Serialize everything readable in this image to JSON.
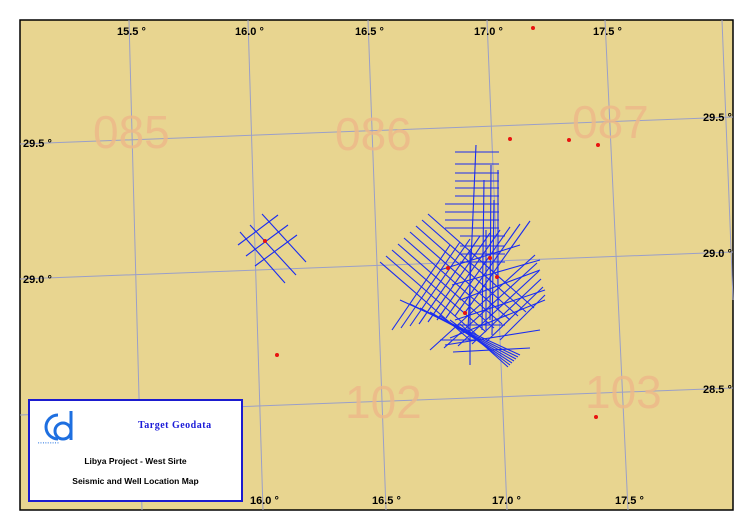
{
  "map": {
    "longitude_labels": [
      "15.5 °",
      "16.0 °",
      "16.5 °",
      "17.0 °",
      "17.5 °"
    ],
    "latitude_labels": [
      "29.5 °",
      "29.0 °",
      "28.5 °"
    ],
    "blocks": [
      "085",
      "086",
      "087",
      "102",
      "103"
    ]
  },
  "legend": {
    "company": "Target Geodata",
    "project": "Libya Project - West Sirte",
    "subtitle": "Seismic and Well Location Map",
    "logo_text": "Cd"
  },
  "colors": {
    "background": "#E8D590",
    "seismic": "#1A2CF0",
    "well": "#E8130F",
    "block": "#EDB98A",
    "grid": "#9A9FC8",
    "frame": "#1B1BCF"
  }
}
